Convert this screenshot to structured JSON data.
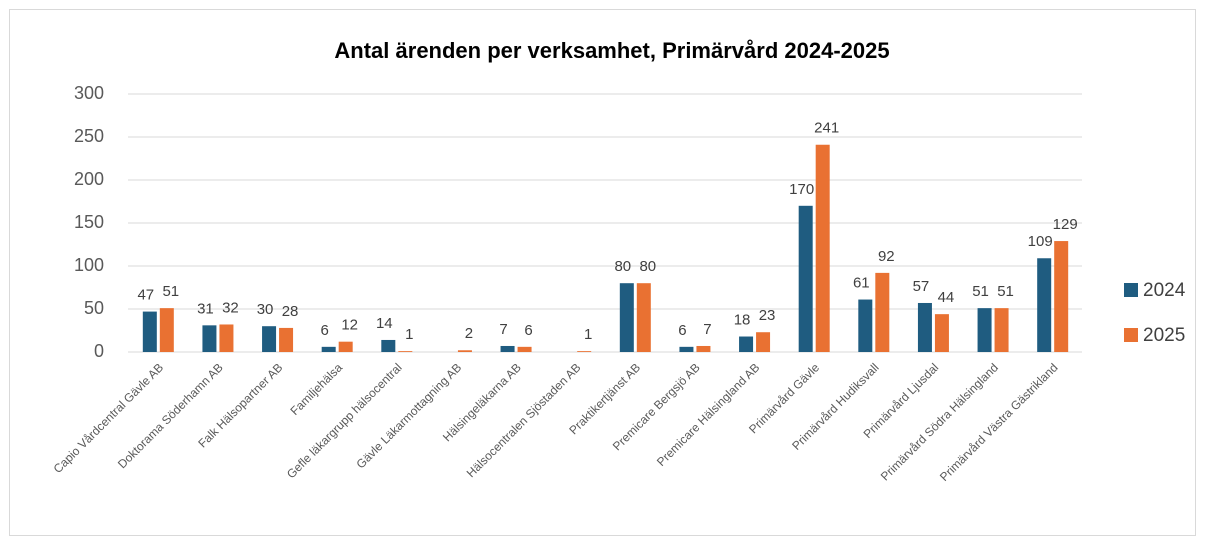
{
  "chart_data": {
    "type": "bar",
    "title": "Antal ärenden per verksamhet, Primärvård 2024-2025",
    "categories": [
      "Capio Vårdcentral Gävle AB",
      "Doktorama Söderhamn AB",
      "Falk Hälsopartner AB",
      "Familjehälsa",
      "Gefle läkargrupp hälsocentral",
      "Gävle Läkarmottagning AB",
      "Hälsingeläkarna AB",
      "Hälsocentralen Sjöstaden AB",
      "Praktikertjänst AB",
      "Premicare Bergsjö AB",
      "Premicare Hälsingland AB",
      "Primärvård Gävle",
      "Primärvård Hudiksvall",
      "Primärvård Ljusdal",
      "Primärvård Södra Hälsingland",
      "Primärvård Västra Gästrikland"
    ],
    "series": [
      {
        "name": "2024",
        "color": "#1f5c80",
        "values": [
          47,
          31,
          30,
          6,
          14,
          null,
          7,
          null,
          80,
          6,
          18,
          170,
          61,
          57,
          51,
          109
        ]
      },
      {
        "name": "2025",
        "color": "#e97132",
        "values": [
          51,
          32,
          28,
          12,
          1,
          2,
          6,
          1,
          80,
          7,
          23,
          241,
          92,
          44,
          51,
          129
        ]
      }
    ],
    "ylim": [
      0,
      300
    ],
    "yticks": [
      0,
      50,
      100,
      150,
      200,
      250,
      300
    ],
    "grid": true,
    "legend": "right"
  }
}
